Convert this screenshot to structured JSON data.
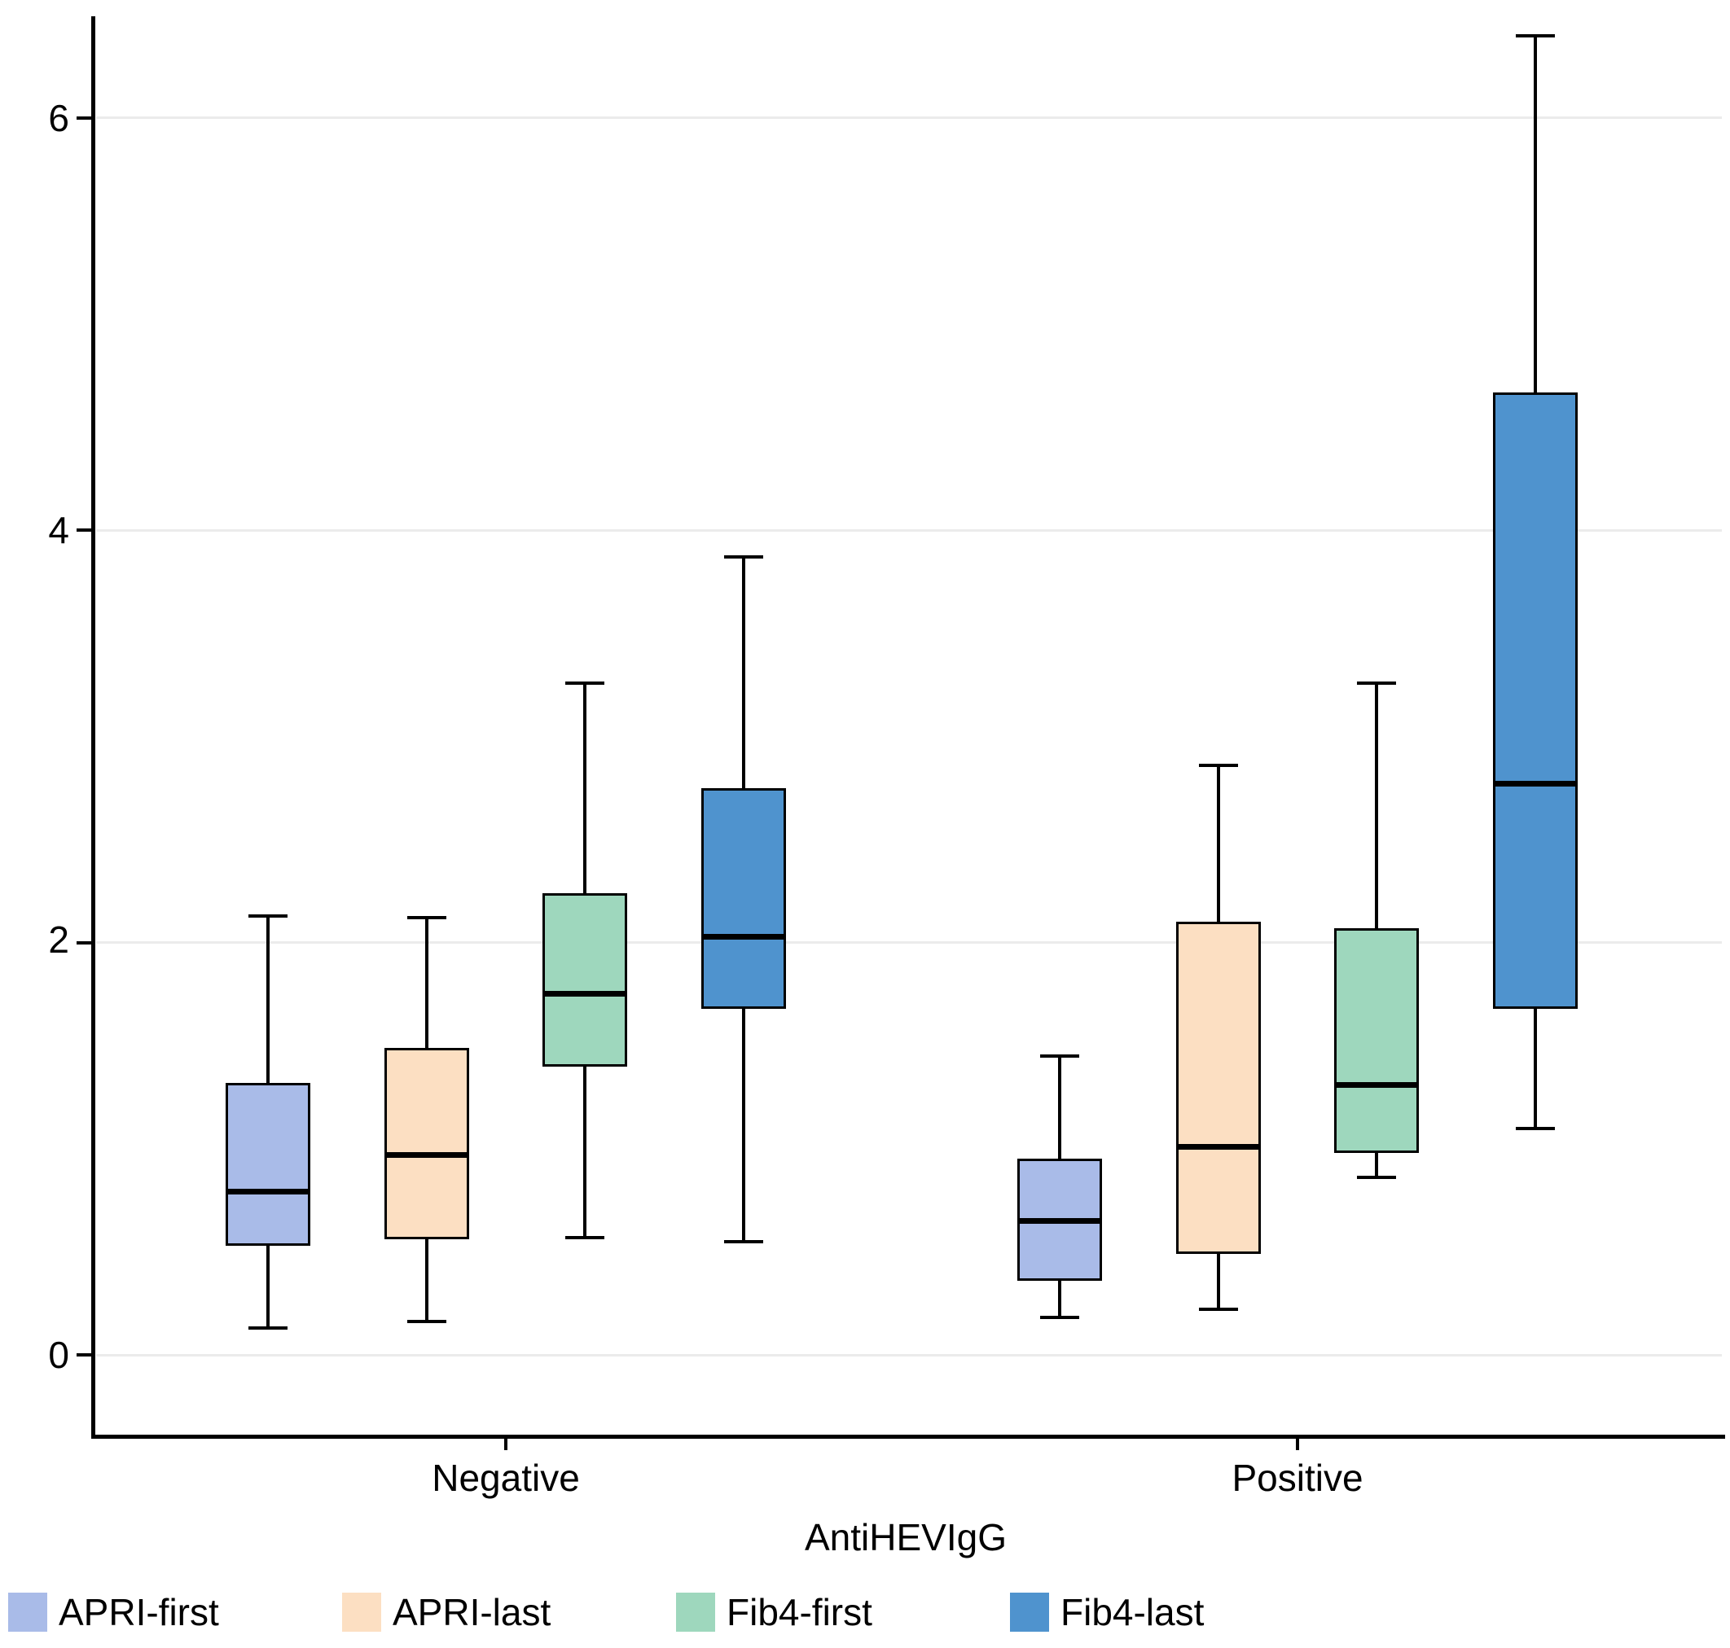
{
  "chart_data": {
    "type": "box",
    "title": "",
    "x_axis_title": "AntiHEVIgG",
    "y_axis_title": "",
    "categories": [
      "Negative",
      "Positive"
    ],
    "y_ticks": [
      0,
      2,
      4,
      6
    ],
    "ylim": [
      -0.4,
      6.5
    ],
    "grid": "horizontal light gridlines at y ticks only",
    "legend_position": "bottom-left horizontal",
    "series": [
      {
        "name": "APRI-first",
        "color": "#a9bbe8",
        "data": [
          {
            "category": "Negative",
            "min": 0.13,
            "q1": 0.53,
            "median": 0.79,
            "q3": 1.32,
            "max": 2.13
          },
          {
            "category": "Positive",
            "min": 0.18,
            "q1": 0.36,
            "median": 0.65,
            "q3": 0.95,
            "max": 1.45
          }
        ]
      },
      {
        "name": "APRI-last",
        "color": "#fcdfc2",
        "data": [
          {
            "category": "Negative",
            "min": 0.16,
            "q1": 0.56,
            "median": 0.97,
            "q3": 1.49,
            "max": 2.12
          },
          {
            "category": "Positive",
            "min": 0.22,
            "q1": 0.49,
            "median": 1.01,
            "q3": 2.1,
            "max": 2.86
          }
        ]
      },
      {
        "name": "Fib4-first",
        "color": "#9ed7bd",
        "data": [
          {
            "category": "Negative",
            "min": 0.57,
            "q1": 1.4,
            "median": 1.75,
            "q3": 2.24,
            "max": 3.26
          },
          {
            "category": "Positive",
            "min": 0.86,
            "q1": 0.98,
            "median": 1.31,
            "q3": 2.07,
            "max": 3.26
          }
        ]
      },
      {
        "name": "Fib4-last",
        "color": "#4f93ce",
        "data": [
          {
            "category": "Negative",
            "min": 0.55,
            "q1": 1.68,
            "median": 2.03,
            "q3": 2.75,
            "max": 3.87
          },
          {
            "category": "Positive",
            "min": 1.1,
            "q1": 1.68,
            "median": 2.77,
            "q3": 4.67,
            "max": 6.4
          }
        ]
      }
    ]
  },
  "colors": {
    "background": "#ffffff",
    "axis": "#000000",
    "gridline": "#ebebeb",
    "box_border": "#000000"
  }
}
